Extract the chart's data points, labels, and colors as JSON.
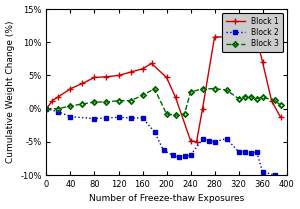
{
  "title": "",
  "xlabel": "Number of Freeze-thaw Exposures",
  "ylabel": "Cumulative Weight Change (%)",
  "xlim": [
    0,
    400
  ],
  "ylim": [
    -0.1,
    0.15
  ],
  "yticks": [
    -0.1,
    -0.05,
    0.0,
    0.05,
    0.1,
    0.15
  ],
  "xticks": [
    0,
    40,
    80,
    120,
    160,
    200,
    240,
    280,
    320,
    360,
    400
  ],
  "block1": {
    "x": [
      0,
      10,
      20,
      40,
      60,
      80,
      100,
      120,
      140,
      160,
      175,
      200,
      215,
      240,
      250,
      260,
      280,
      300,
      310,
      320,
      330,
      340,
      350,
      360,
      375,
      390
    ],
    "y": [
      0.0,
      0.012,
      0.018,
      0.03,
      0.038,
      0.047,
      0.048,
      0.05,
      0.055,
      0.06,
      0.068,
      0.047,
      0.017,
      -0.048,
      -0.05,
      0.0,
      0.108,
      0.108,
      0.107,
      0.107,
      0.108,
      0.11,
      0.107,
      0.07,
      0.012,
      -0.013
    ],
    "color": "#cc0000",
    "label": "Block 1"
  },
  "block2": {
    "x": [
      0,
      20,
      40,
      80,
      100,
      120,
      140,
      160,
      180,
      195,
      210,
      220,
      230,
      240,
      260,
      270,
      280,
      300,
      320,
      330,
      340,
      350,
      360,
      380
    ],
    "y": [
      0.0,
      -0.005,
      -0.012,
      -0.015,
      -0.014,
      -0.013,
      -0.014,
      -0.014,
      -0.035,
      -0.063,
      -0.07,
      -0.073,
      -0.072,
      -0.07,
      -0.046,
      -0.048,
      -0.05,
      -0.045,
      -0.065,
      -0.065,
      -0.067,
      -0.065,
      -0.095,
      -0.1
    ],
    "color": "#0000cc",
    "label": "Block 2"
  },
  "block3": {
    "x": [
      0,
      20,
      40,
      60,
      80,
      100,
      120,
      140,
      160,
      180,
      200,
      215,
      230,
      240,
      260,
      280,
      300,
      320,
      330,
      340,
      350,
      360,
      380,
      390
    ],
    "y": [
      0.0,
      0.0,
      0.004,
      0.007,
      0.01,
      0.01,
      0.012,
      0.012,
      0.02,
      0.03,
      -0.008,
      -0.01,
      -0.008,
      0.025,
      0.03,
      0.03,
      0.028,
      0.015,
      0.018,
      0.018,
      0.015,
      0.017,
      0.013,
      0.005
    ],
    "color": "#006600",
    "label": "Block 3"
  },
  "background_color": "#ffffff",
  "legend_bg": "#c8c8c8"
}
